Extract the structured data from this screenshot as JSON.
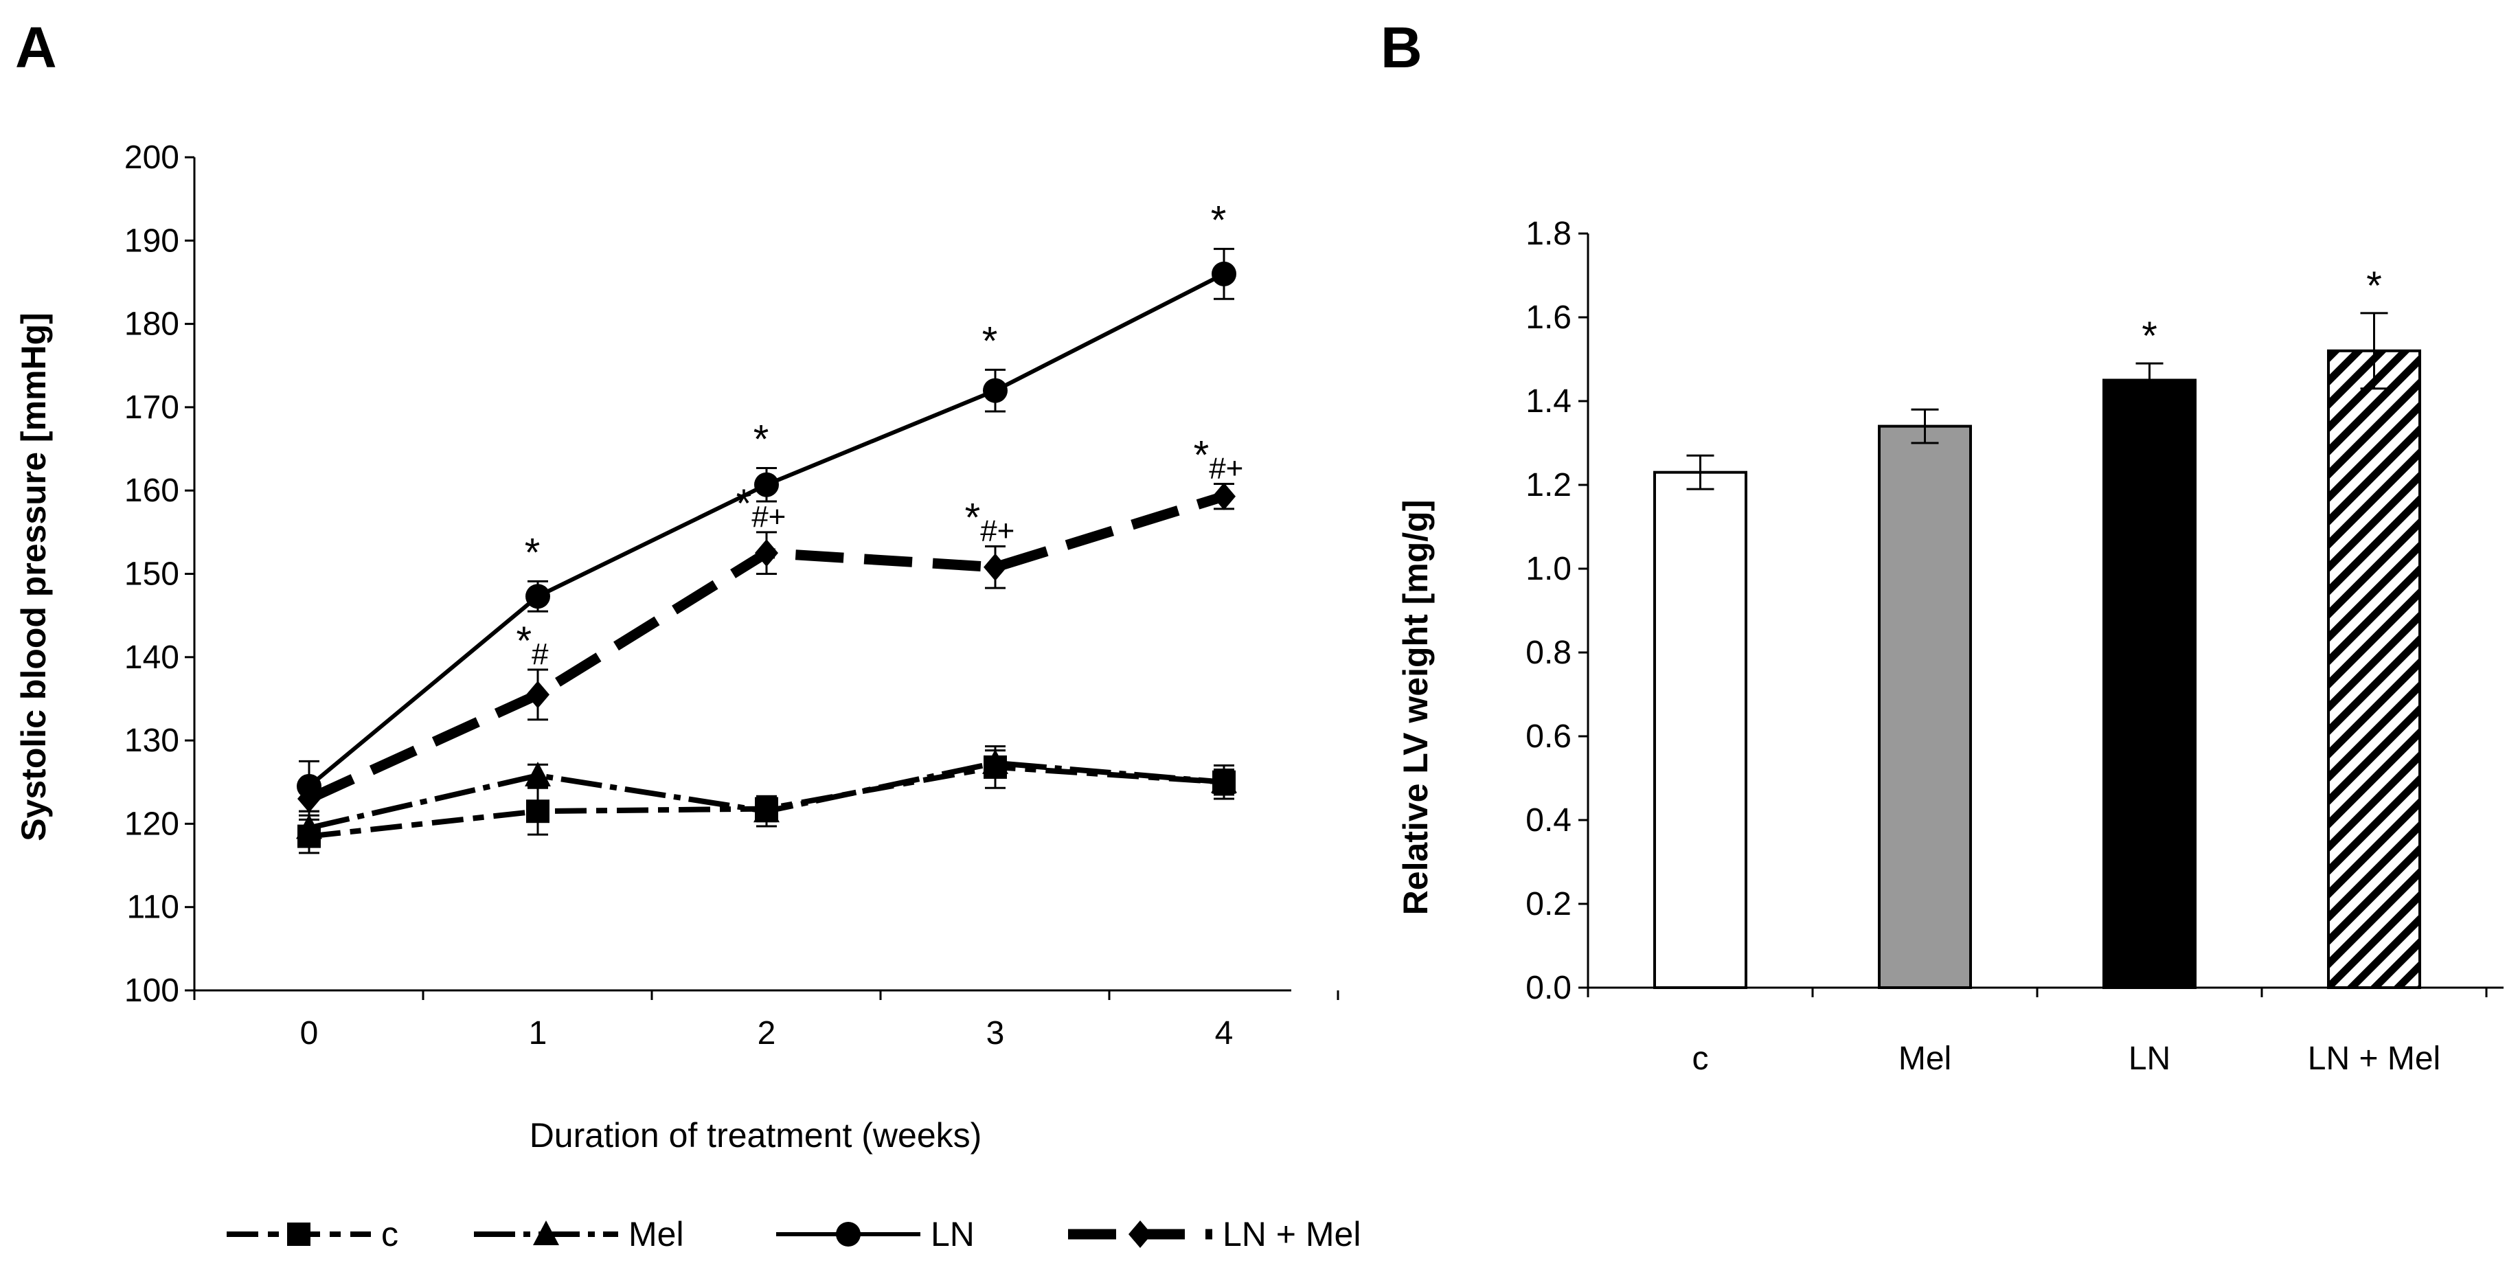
{
  "panels": [
    {
      "letter": "A"
    },
    {
      "letter": "B"
    }
  ],
  "chart_data": [
    {
      "panel": "A",
      "type": "line",
      "title": "",
      "xlabel": "Duration of treatment (weeks)",
      "ylabel": "Systolic blood pressure [mmHg]",
      "x": [
        0,
        1,
        2,
        3,
        4
      ],
      "x_tick_labels": [
        "0",
        "1",
        "2",
        "3",
        "4"
      ],
      "ylim": [
        100,
        200
      ],
      "y_ticks": [
        100,
        110,
        120,
        130,
        140,
        150,
        160,
        170,
        180,
        190,
        200
      ],
      "series": [
        {
          "name": "c",
          "marker": "square",
          "dash": "long-short",
          "values": [
            118.5,
            121.5,
            121.8,
            126.8,
            125.0
          ],
          "errors": [
            2.0,
            2.8,
            1.5,
            2.5,
            2.0
          ],
          "annotations": [
            "",
            "",
            "",
            "",
            ""
          ]
        },
        {
          "name": "Mel",
          "marker": "triangle",
          "dash": "long-dot",
          "values": [
            119.5,
            125.8,
            121.5,
            127.3,
            125.0
          ],
          "errors": [
            2.0,
            1.3,
            1.8,
            1.5,
            1.5
          ],
          "annotations": [
            "",
            "",
            "",
            "",
            ""
          ]
        },
        {
          "name": "LN",
          "marker": "circle",
          "dash": "solid",
          "values": [
            124.5,
            147.3,
            160.7,
            172.0,
            186.0
          ],
          "errors": [
            3.0,
            1.8,
            2.0,
            2.5,
            3.0
          ],
          "annotations": [
            "",
            "*",
            "*",
            "*",
            "*"
          ]
        },
        {
          "name": "LN + Mel",
          "marker": "diamond",
          "dash": "heavy-dash",
          "values": [
            123.0,
            135.5,
            152.5,
            150.8,
            159.3
          ],
          "errors": [
            2.0,
            3.0,
            2.5,
            2.5,
            1.5
          ],
          "annotations": [
            "",
            "*#",
            "*#+",
            "*#+",
            "*#+"
          ]
        }
      ]
    },
    {
      "panel": "B",
      "type": "bar",
      "title": "",
      "xlabel": "",
      "ylabel": "Relative LV weight [mg/g]",
      "categories": [
        "c",
        "Mel",
        "LN",
        "LN + Mel"
      ],
      "values": [
        1.23,
        1.34,
        1.45,
        1.52
      ],
      "errors": [
        0.04,
        0.04,
        0.04,
        0.09
      ],
      "annotations": [
        "",
        "",
        "*",
        "*"
      ],
      "fills": [
        "#ffffff",
        "#999999",
        "#000000",
        "hatch"
      ],
      "ylim": [
        0,
        1.8
      ],
      "y_tick_labels": [
        "0.0",
        "0.2",
        "0.4",
        "0.6",
        "0.8",
        "1.0",
        "1.2",
        "1.4",
        "1.6",
        "1.8"
      ]
    }
  ]
}
